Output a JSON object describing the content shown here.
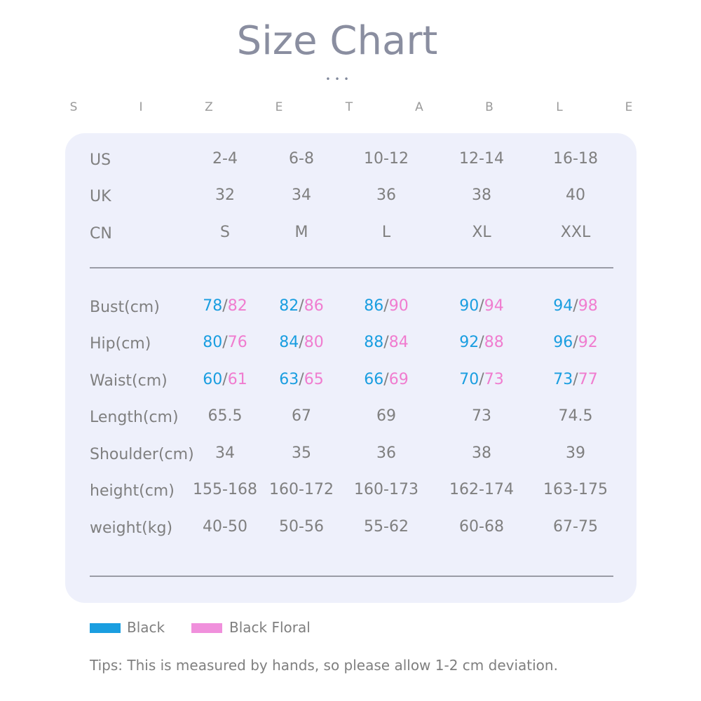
{
  "title": "Size Chart",
  "dots": "•••",
  "subtitle_letters": [
    "S",
    "I",
    "Z",
    "E",
    "T",
    "A",
    "B",
    "L",
    "E"
  ],
  "colors": {
    "title": "#8a8ea0",
    "panel_bg": "#eef0fb",
    "text": "#7f7f7f",
    "black_series": "#1a9ee0",
    "floral_series": "#f07ccf"
  },
  "size_rows": [
    {
      "label": "US",
      "values": [
        "2-4",
        "6-8",
        "10-12",
        "12-14",
        "16-18"
      ]
    },
    {
      "label": "UK",
      "values": [
        "32",
        "34",
        "36",
        "38",
        "40"
      ]
    },
    {
      "label": "CN",
      "values": [
        "S",
        "M",
        "L",
        "XL",
        "XXL"
      ]
    }
  ],
  "dual_rows": [
    {
      "label": "Bust(cm)",
      "black": [
        "78",
        "82",
        "86",
        "90",
        "94"
      ],
      "floral": [
        "82",
        "86",
        "90",
        "94",
        "98"
      ]
    },
    {
      "label": "Hip(cm)",
      "black": [
        "80",
        "84",
        "88",
        "92",
        "96"
      ],
      "floral": [
        "76",
        "80",
        "84",
        "88",
        "92"
      ]
    },
    {
      "label": "Waist(cm)",
      "black": [
        "60",
        "63",
        "66",
        "70",
        "73"
      ],
      "floral": [
        "61",
        "65",
        "69",
        "73",
        "77"
      ]
    }
  ],
  "separator": "/",
  "measure_rows": [
    {
      "label": "Length(cm)",
      "values": [
        "65.5",
        "67",
        "69",
        "73",
        "74.5"
      ]
    },
    {
      "label": "Shoulder(cm)",
      "values": [
        "34",
        "35",
        "36",
        "38",
        "39"
      ]
    },
    {
      "label": "height(cm)",
      "values": [
        "155-168",
        "160-172",
        "160-173",
        "162-174",
        "163-175"
      ]
    },
    {
      "label": "weight(kg)",
      "values": [
        "40-50",
        "50-56",
        "55-62",
        "60-68",
        "67-75"
      ]
    }
  ],
  "legend": {
    "black_label": "Black",
    "floral_label": "Black Floral"
  },
  "tips": "Tips: This is measured by hands, so please allow 1-2 cm deviation."
}
